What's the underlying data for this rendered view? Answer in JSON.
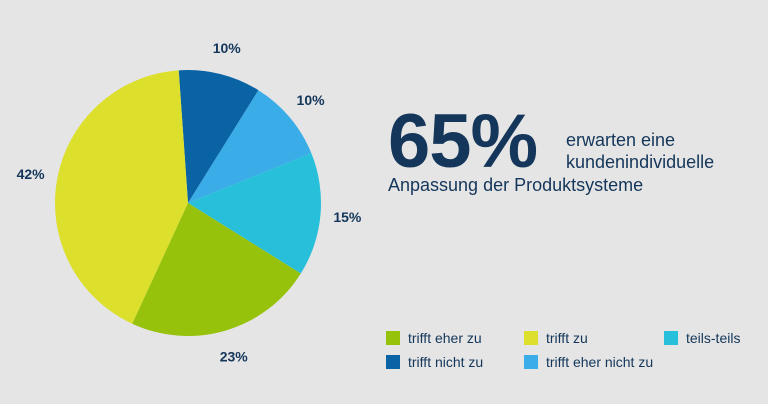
{
  "chart_data": {
    "type": "pie",
    "slices": [
      {
        "label": "trifft nicht zu",
        "value": 10,
        "value_label": "10%",
        "color": "#0a63a5"
      },
      {
        "label": "trifft eher nicht zu",
        "value": 10,
        "value_label": "10%",
        "color": "#3aade8"
      },
      {
        "label": "teils-teils",
        "value": 15,
        "value_label": "15%",
        "color": "#27bfd9"
      },
      {
        "label": "trifft eher zu",
        "value": 23,
        "value_label": "23%",
        "color": "#96c20c"
      },
      {
        "label": "trifft zu",
        "value": 42,
        "value_label": "42%",
        "color": "#dcdf2c"
      }
    ],
    "legend": [
      {
        "label": "trifft eher zu",
        "color": "#96c20c"
      },
      {
        "label": "trifft zu",
        "color": "#dcdf2c"
      },
      {
        "label": "teils-teils",
        "color": "#27bfd9"
      },
      {
        "label": "trifft nicht zu",
        "color": "#0a63a5"
      },
      {
        "label": "trifft eher nicht zu",
        "color": "#3aade8"
      }
    ],
    "legend_position": "bottom-right"
  },
  "headline": {
    "number": "65%",
    "line1": "erwarten eine",
    "line2": "kundenindividuelle",
    "line3": "Anpassung der Produktsysteme"
  },
  "colors": {
    "background": "#e5e5e5",
    "text": "#14365a"
  }
}
